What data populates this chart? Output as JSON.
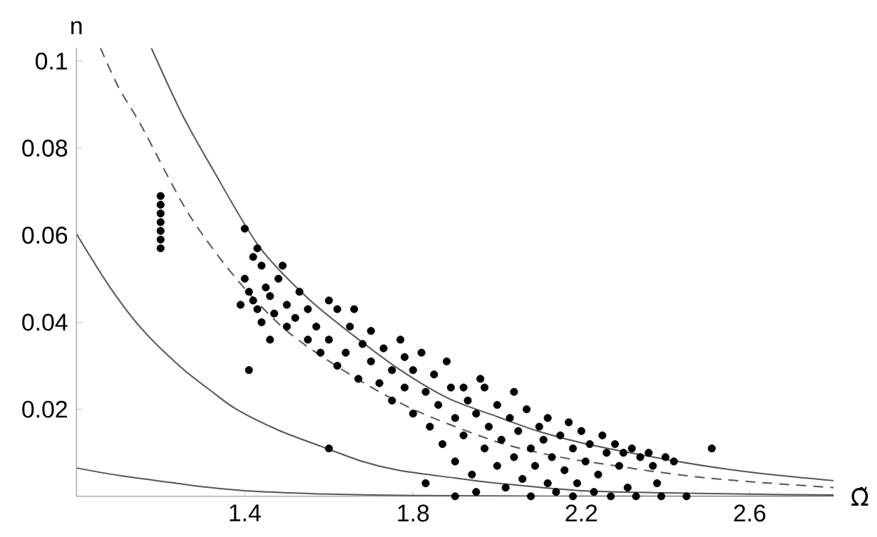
{
  "chart_data": {
    "type": "scatter",
    "xlabel": "Ω̃",
    "ylabel": "n",
    "xlim": [
      1.0,
      2.8
    ],
    "ylim": [
      0,
      0.103
    ],
    "xticks": [
      1.4,
      1.8,
      2.2,
      2.6
    ],
    "yticks": [
      0.02,
      0.04,
      0.06,
      0.08,
      0.1
    ],
    "series": [
      {
        "type": "line",
        "color": "#555555",
        "line_style": "solid",
        "marker": "none",
        "x": [
          1.178,
          1.25,
          1.323,
          1.434,
          1.55,
          1.659,
          1.77,
          1.884,
          2.0,
          2.096,
          2.2,
          2.35,
          2.5,
          2.65,
          2.8
        ],
        "values": [
          0.103,
          0.088,
          0.0753,
          0.0574,
          0.0455,
          0.0369,
          0.029,
          0.0225,
          0.0183,
          0.015,
          0.0123,
          0.0094,
          0.0069,
          0.005,
          0.0036
        ]
      },
      {
        "type": "line",
        "color": "#555555",
        "line_style": "dashed",
        "marker": "none",
        "x": [
          1.057,
          1.1,
          1.155,
          1.266,
          1.38,
          1.5,
          1.65,
          1.8,
          2.0,
          2.15,
          2.297,
          2.365,
          2.5,
          2.65,
          2.8
        ],
        "values": [
          0.103,
          0.094,
          0.085,
          0.065,
          0.05,
          0.038,
          0.028,
          0.02,
          0.0125,
          0.009,
          0.0068,
          0.0058,
          0.0042,
          0.003,
          0.002
        ]
      },
      {
        "type": "line",
        "color": "#555555",
        "line_style": "solid",
        "marker": "none",
        "x": [
          1.0,
          1.08,
          1.155,
          1.25,
          1.323,
          1.38,
          1.48,
          1.581,
          1.68,
          1.77,
          1.9,
          2.0,
          2.2,
          2.4,
          2.6,
          2.8
        ],
        "values": [
          0.0603,
          0.048,
          0.0385,
          0.0295,
          0.024,
          0.02,
          0.0152,
          0.0115,
          0.008,
          0.0059,
          0.0042,
          0.003,
          0.0013,
          0.0008,
          0.0005,
          0.0003
        ]
      },
      {
        "type": "line",
        "color": "#555555",
        "line_style": "solid",
        "marker": "none",
        "x": [
          1.0,
          1.1,
          1.222,
          1.3,
          1.4,
          1.6,
          1.8,
          2.2,
          2.8
        ],
        "values": [
          0.0065,
          0.0048,
          0.0032,
          0.0022,
          0.0013,
          0.0005,
          0.0002,
          0.0,
          0.0
        ]
      },
      {
        "color": "#000000",
        "marker": "circle",
        "x": [
          1.2,
          1.2,
          1.2,
          1.2,
          1.2,
          1.2,
          1.2,
          1.4,
          1.42,
          1.43,
          1.44,
          1.4,
          1.41,
          1.42,
          1.39,
          1.43,
          1.45,
          1.46,
          1.44,
          1.41,
          1.47,
          1.48,
          1.49,
          1.5,
          1.5,
          1.46,
          1.52,
          1.53,
          1.55,
          1.55,
          1.57,
          1.58,
          1.6,
          1.62,
          1.6,
          1.62,
          1.65,
          1.66,
          1.64,
          1.67,
          1.68,
          1.7,
          1.7,
          1.72,
          1.73,
          1.75,
          1.75,
          1.77,
          1.78,
          1.78,
          1.8,
          1.8,
          1.82,
          1.83,
          1.84,
          1.83,
          1.85,
          1.86,
          1.87,
          1.88,
          1.89,
          1.9,
          1.9,
          1.9,
          1.92,
          1.92,
          1.93,
          1.94,
          1.95,
          1.95,
          1.96,
          1.97,
          1.97,
          1.98,
          2.0,
          2.0,
          2.01,
          2.02,
          2.03,
          2.04,
          2.04,
          2.05,
          2.06,
          2.07,
          2.08,
          2.08,
          2.09,
          2.1,
          2.11,
          2.12,
          2.12,
          2.13,
          2.14,
          2.15,
          2.16,
          2.17,
          2.18,
          2.18,
          2.19,
          2.2,
          2.21,
          2.22,
          2.23,
          2.24,
          2.25,
          2.26,
          2.27,
          2.28,
          2.29,
          2.3,
          2.31,
          2.32,
          2.33,
          2.34,
          2.36,
          2.37,
          2.38,
          2.39,
          2.4,
          2.42,
          2.45,
          2.51,
          1.6
        ],
        "values": [
          0.057,
          0.059,
          0.061,
          0.063,
          0.065,
          0.067,
          0.069,
          0.0615,
          0.055,
          0.057,
          0.053,
          0.05,
          0.047,
          0.045,
          0.044,
          0.043,
          0.048,
          0.046,
          0.04,
          0.029,
          0.042,
          0.05,
          0.053,
          0.044,
          0.039,
          0.036,
          0.041,
          0.047,
          0.043,
          0.036,
          0.039,
          0.033,
          0.045,
          0.043,
          0.036,
          0.03,
          0.039,
          0.043,
          0.033,
          0.027,
          0.035,
          0.038,
          0.031,
          0.026,
          0.034,
          0.029,
          0.022,
          0.036,
          0.032,
          0.025,
          0.029,
          0.019,
          0.033,
          0.024,
          0.016,
          0.003,
          0.028,
          0.021,
          0.012,
          0.031,
          0.025,
          0.018,
          0.008,
          0.0,
          0.025,
          0.014,
          0.022,
          0.005,
          0.019,
          0.001,
          0.027,
          0.025,
          0.011,
          0.016,
          0.021,
          0.007,
          0.013,
          0.002,
          0.018,
          0.024,
          0.009,
          0.015,
          0.004,
          0.02,
          0.011,
          0.0,
          0.007,
          0.016,
          0.013,
          0.003,
          0.018,
          0.009,
          0.001,
          0.014,
          0.006,
          0.017,
          0.011,
          0.0,
          0.003,
          0.015,
          0.008,
          0.012,
          0.001,
          0.005,
          0.014,
          0.01,
          0.0,
          0.012,
          0.007,
          0.01,
          0.002,
          0.011,
          0.0,
          0.009,
          0.01,
          0.007,
          0.003,
          0.0,
          0.009,
          0.008,
          0.0,
          0.011,
          0.011
        ]
      }
    ]
  }
}
